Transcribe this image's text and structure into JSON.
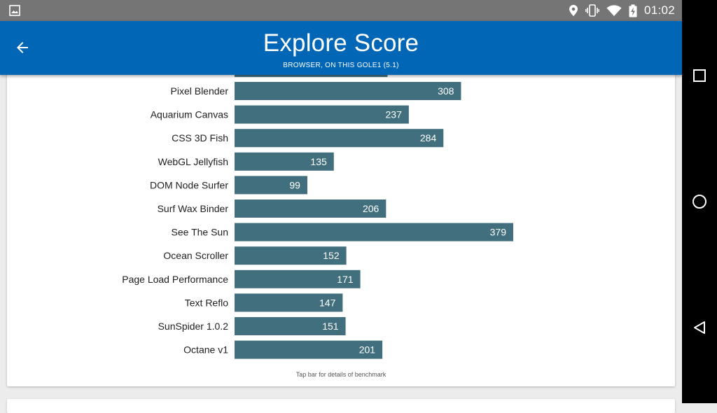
{
  "status_bar": {
    "time": "01:02",
    "icons": [
      "gallery-icon",
      "location-icon",
      "vibrate-icon",
      "wifi-icon",
      "battery-charging-icon"
    ]
  },
  "app_bar": {
    "title": "Explore Score",
    "subtitle": "BROWSER, ON THIS GOLE1 (5.1)",
    "back_icon": "arrow-left-icon"
  },
  "chart_data": {
    "type": "bar",
    "orientation": "horizontal",
    "categories": [
      "Pixel Blender",
      "Aquarium Canvas",
      "CSS 3D Fish",
      "WebGL Jellyfish",
      "DOM Node Surfer",
      "Surf Wax Binder",
      "See The Sun",
      "Ocean Scroller",
      "Page Load Performance",
      "Text Reflo",
      "SunSpider 1.0.2",
      "Octane v1"
    ],
    "values": [
      308,
      237,
      284,
      135,
      99,
      206,
      379,
      152,
      171,
      147,
      151,
      201
    ],
    "bar_color": "#426f7d",
    "scroll_partial_top_bar_value": 208
  },
  "footnote": "Tap bar for details of benchmark",
  "nav_bar": {
    "icons": [
      "recent-apps-icon",
      "home-icon",
      "back-triangle-icon"
    ]
  },
  "colors": {
    "app_bar": "#0266b7",
    "status_bar": "#757575",
    "background": "#ececec"
  }
}
